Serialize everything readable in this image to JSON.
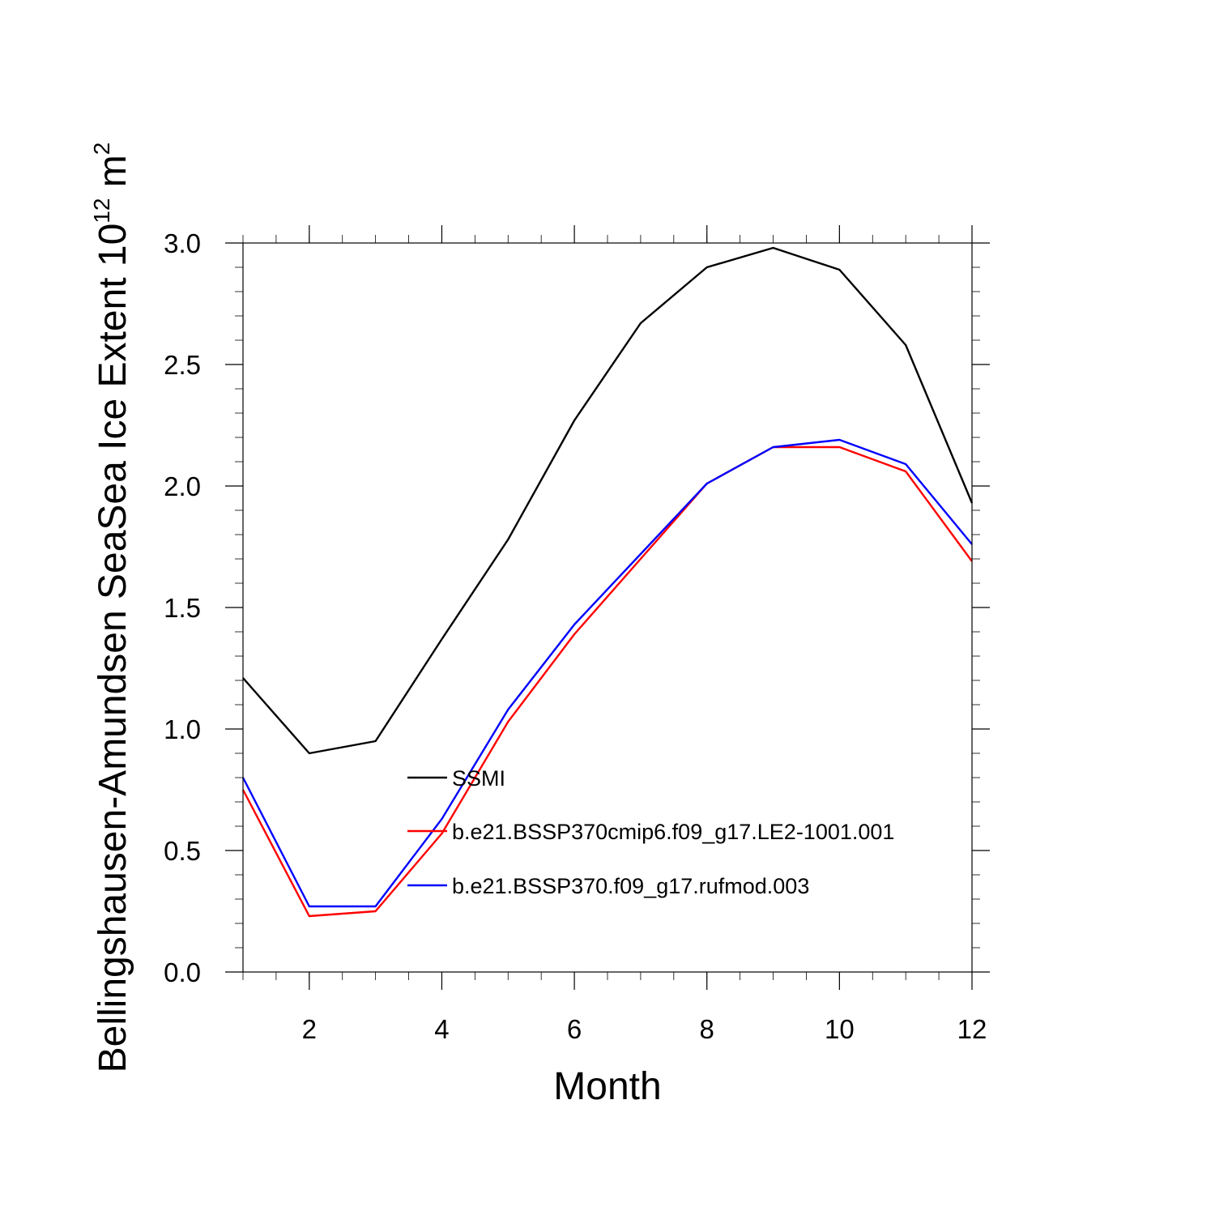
{
  "chart_data": {
    "type": "line",
    "xlabel": "Month",
    "ylabel": "Bellingshausen-Amundsen SeaSea Ice Extent 10",
    "ylabel_exponent": "12",
    "ylabel_unit": " m",
    "ylabel_unit_exponent": "2",
    "xlim": [
      1,
      12
    ],
    "ylim": [
      0,
      3
    ],
    "xticks": [
      2,
      4,
      6,
      8,
      10,
      12
    ],
    "xtick_labels": [
      "2",
      "4",
      "6",
      "8",
      "10",
      "12"
    ],
    "yticks": [
      0,
      0.5,
      1,
      1.5,
      2,
      2.5,
      3
    ],
    "ytick_labels": [
      "0.0",
      "0.5",
      "1.0",
      "1.5",
      "2.0",
      "2.5",
      "3.0"
    ],
    "grid": false,
    "legend_position": "center",
    "x": [
      1,
      2,
      3,
      4,
      5,
      6,
      7,
      8,
      9,
      10,
      11,
      12
    ],
    "series": [
      {
        "name": "SSMI",
        "color": "#000000",
        "values": [
          1.21,
          0.9,
          0.95,
          1.37,
          1.78,
          2.27,
          2.67,
          2.9,
          2.98,
          2.89,
          2.58,
          1.93
        ]
      },
      {
        "name": "b.e21.BSSP370cmip6.f09_g17.LE2-1001.001",
        "color": "#ff0000",
        "values": [
          0.75,
          0.23,
          0.25,
          0.57,
          1.03,
          1.39,
          1.7,
          2.01,
          2.16,
          2.16,
          2.06,
          1.69
        ]
      },
      {
        "name": "b.e21.BSSP370.f09_g17.rufmod.003",
        "color": "#0000ff",
        "values": [
          0.8,
          0.27,
          0.27,
          0.63,
          1.08,
          1.43,
          1.72,
          2.01,
          2.16,
          2.19,
          2.09,
          1.76
        ]
      }
    ]
  }
}
